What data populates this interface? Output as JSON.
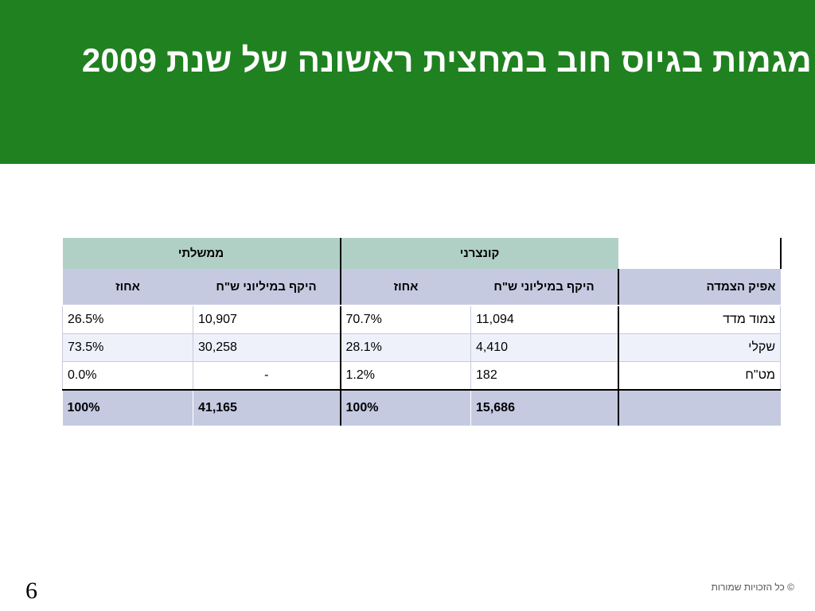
{
  "slide": {
    "title": "מגמות בגיוס חוב במחצית ראשונה של שנת 2009",
    "page_number": "6",
    "copyright": "© כל הזכויות שמורות"
  },
  "table": {
    "groups": {
      "consumer": "קונצרני",
      "government": "ממשלתי"
    },
    "headers": {
      "linkage": "אפיק הצמדה",
      "c_volume": "היקף במיליוני ש\"ח",
      "c_percent": "אחוז",
      "g_volume": "היקף במיליוני ש\"ח",
      "g_percent": "אחוז"
    },
    "rows": [
      {
        "label": "צמוד מדד",
        "c_volume": "11,094",
        "c_percent": "70.7%",
        "g_volume": "10,907",
        "g_percent": "26.5%"
      },
      {
        "label": "שקלי",
        "c_volume": "4,410",
        "c_percent": "28.1%",
        "g_volume": "30,258",
        "g_percent": "73.5%"
      },
      {
        "label": "מט\"ח",
        "c_volume": "182",
        "c_percent": "1.2%",
        "g_volume": "-",
        "g_percent": "0.0%"
      }
    ],
    "total": {
      "label": "",
      "c_volume": "15,686",
      "c_percent": "100%",
      "g_volume": "41,165",
      "g_percent": "100%"
    }
  }
}
